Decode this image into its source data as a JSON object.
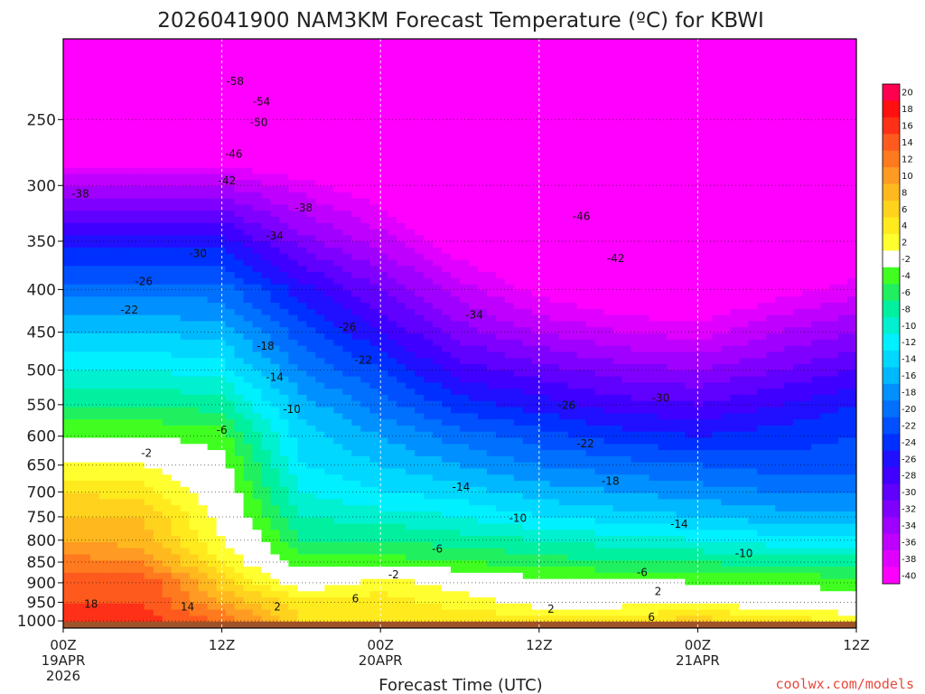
{
  "chart_data": {
    "type": "heatmap",
    "title": "2026041900 NAM3KM Forecast Temperature (ºC) for KBWI",
    "xlabel": "Forecast Time (UTC)",
    "y_axis": {
      "scale": "log-pressure",
      "inverted": true,
      "range_hPa": [
        1020,
        200
      ],
      "ticks": [
        "250",
        "300",
        "350",
        "400",
        "450",
        "500",
        "550",
        "600",
        "650",
        "700",
        "750",
        "800",
        "850",
        "900",
        "950",
        "1000"
      ]
    },
    "x_axis": {
      "range_hours": [
        0,
        60
      ],
      "ticks": [
        {
          "hour": 0,
          "lines": [
            "00Z",
            "19APR",
            "2026"
          ]
        },
        {
          "hour": 12,
          "lines": [
            "12Z"
          ]
        },
        {
          "hour": 24,
          "lines": [
            "00Z",
            "20APR"
          ]
        },
        {
          "hour": 36,
          "lines": [
            "12Z"
          ]
        },
        {
          "hour": 48,
          "lines": [
            "00Z",
            "21APR"
          ]
        },
        {
          "hour": 60,
          "lines": [
            "12Z"
          ]
        }
      ]
    },
    "grid": true,
    "colorbar": {
      "placement": "right",
      "levels": [
        "20",
        "18",
        "16",
        "14",
        "12",
        "10",
        "8",
        "6",
        "4",
        "2",
        "-2",
        "-4",
        "-6",
        "-8",
        "-10",
        "-12",
        "-14",
        "-16",
        "-18",
        "-20",
        "-22",
        "-24",
        "-26",
        "-28",
        "-30",
        "-32",
        "-34",
        "-36",
        "-38",
        "-40"
      ],
      "colors": [
        "#ff0050",
        "#ff1010",
        "#ff3018",
        "#ff5a1e",
        "#ff7a1e",
        "#ff9a22",
        "#ffb81e",
        "#ffd21e",
        "#ffea1e",
        "#ffff30",
        "#ffffff",
        "#40ff20",
        "#20f060",
        "#00f0a0",
        "#00f0d0",
        "#00f0ff",
        "#00d8ff",
        "#00b8ff",
        "#0090ff",
        "#0070ff",
        "#0050ff",
        "#0030ff",
        "#2010ff",
        "#4000ff",
        "#6000ff",
        "#8000ff",
        "#a000ff",
        "#c000ff",
        "#e000ff",
        "#ff00ff"
      ]
    },
    "temperature_profiles": {
      "hours": [
        0,
        6,
        12,
        18,
        24,
        30,
        36,
        42,
        48,
        54,
        60
      ],
      "pressure_levels_hPa": [
        1000,
        950,
        900,
        850,
        800,
        750,
        700,
        650,
        600,
        550,
        500,
        450,
        400,
        350,
        300,
        250,
        200
      ],
      "temperature_C": [
        [
          17,
          17,
          14,
          6,
          5,
          6,
          5,
          5,
          7,
          5,
          4
        ],
        [
          16,
          16,
          10,
          5,
          5,
          3,
          1,
          1,
          2,
          0,
          -1
        ],
        [
          15,
          16,
          7,
          0,
          3,
          1,
          -1,
          -1,
          -2,
          -2,
          -3
        ],
        [
          13,
          12,
          4,
          -3,
          -3,
          -4,
          -5,
          -6,
          -6,
          -7,
          -7
        ],
        [
          10,
          9,
          2,
          -6,
          -6,
          -7,
          -8,
          -9,
          -10,
          -11,
          -11
        ],
        [
          8,
          8,
          1,
          -8,
          -9,
          -10,
          -12,
          -13,
          -14,
          -15,
          -15
        ],
        [
          6,
          5,
          0,
          -10,
          -12,
          -13,
          -15,
          -16,
          -17,
          -18,
          -18
        ],
        [
          2,
          2,
          -1,
          -12,
          -14,
          -16,
          -18,
          -19,
          -20,
          -21,
          -21
        ],
        [
          -2,
          -2,
          -3,
          -13,
          -16,
          -19,
          -21,
          -23,
          -24,
          -23,
          -22
        ],
        [
          -6,
          -6,
          -7,
          -15,
          -19,
          -23,
          -25,
          -27,
          -28,
          -26,
          -24
        ],
        [
          -10,
          -10,
          -11,
          -18,
          -22,
          -27,
          -29,
          -31,
          -32,
          -30,
          -28
        ],
        [
          -14,
          -14,
          -15,
          -21,
          -26,
          -31,
          -34,
          -36,
          -37,
          -34,
          -32
        ],
        [
          -19,
          -19,
          -19,
          -25,
          -30,
          -35,
          -39,
          -41,
          -42,
          -39,
          -37
        ],
        [
          -25,
          -25,
          -25,
          -31,
          -35,
          -40,
          -43,
          -46,
          -46,
          -44,
          -42
        ],
        [
          -34,
          -34,
          -34,
          -37,
          -40,
          -44,
          -46,
          -48,
          -49,
          -47,
          -46
        ],
        [
          -48,
          -48,
          -47,
          -48,
          -49,
          -50,
          -50,
          -50,
          -51,
          -50,
          -49
        ],
        [
          -60,
          -60,
          -58,
          -56,
          -55,
          -54,
          -53,
          -53,
          -54,
          -55,
          -55
        ]
      ]
    },
    "contour_labels": [
      {
        "text": "-58",
        "hour": 13.0,
        "p": 225
      },
      {
        "text": "-54",
        "hour": 15.0,
        "p": 238
      },
      {
        "text": "-50",
        "hour": 14.8,
        "p": 252
      },
      {
        "text": "-46",
        "hour": 12.9,
        "p": 275
      },
      {
        "text": "-42",
        "hour": 12.4,
        "p": 296
      },
      {
        "text": "-38",
        "hour": 1.3,
        "p": 307
      },
      {
        "text": "-38",
        "hour": 18.2,
        "p": 319
      },
      {
        "text": "-46",
        "hour": 39.2,
        "p": 327
      },
      {
        "text": "-34",
        "hour": 16.0,
        "p": 345
      },
      {
        "text": "-30",
        "hour": 10.2,
        "p": 362
      },
      {
        "text": "-42",
        "hour": 41.8,
        "p": 367
      },
      {
        "text": "-26",
        "hour": 6.1,
        "p": 391
      },
      {
        "text": "-22",
        "hour": 5.0,
        "p": 423
      },
      {
        "text": "-34",
        "hour": 31.1,
        "p": 429
      },
      {
        "text": "-26",
        "hour": 21.5,
        "p": 444
      },
      {
        "text": "-18",
        "hour": 15.3,
        "p": 468
      },
      {
        "text": "-22",
        "hour": 22.7,
        "p": 486
      },
      {
        "text": "-14",
        "hour": 16.0,
        "p": 510
      },
      {
        "text": "-30",
        "hour": 45.2,
        "p": 540
      },
      {
        "text": "-26",
        "hour": 38.1,
        "p": 551
      },
      {
        "text": "-10",
        "hour": 17.3,
        "p": 557
      },
      {
        "text": "-6",
        "hour": 12.0,
        "p": 590
      },
      {
        "text": "-22",
        "hour": 39.5,
        "p": 613
      },
      {
        "text": "-2",
        "hour": 6.3,
        "p": 629
      },
      {
        "text": "-18",
        "hour": 41.4,
        "p": 680
      },
      {
        "text": "-14",
        "hour": 30.1,
        "p": 691
      },
      {
        "text": "-10",
        "hour": 34.4,
        "p": 753
      },
      {
        "text": "-14",
        "hour": 46.6,
        "p": 765
      },
      {
        "text": "-6",
        "hour": 28.3,
        "p": 820
      },
      {
        "text": "-10",
        "hour": 51.5,
        "p": 830
      },
      {
        "text": "-6",
        "hour": 43.8,
        "p": 875
      },
      {
        "text": "-2",
        "hour": 25.0,
        "p": 880
      },
      {
        "text": "2",
        "hour": 45.0,
        "p": 922
      },
      {
        "text": "6",
        "hour": 22.1,
        "p": 940
      },
      {
        "text": "18",
        "hour": 2.1,
        "p": 955
      },
      {
        "text": "2",
        "hour": 16.2,
        "p": 962
      },
      {
        "text": "14",
        "hour": 9.4,
        "p": 962
      },
      {
        "text": "2",
        "hour": 36.9,
        "p": 968
      },
      {
        "text": "6",
        "hour": 44.5,
        "p": 990
      }
    ],
    "ground_color": "#a05228"
  },
  "watermark": "coolwx.com/models"
}
